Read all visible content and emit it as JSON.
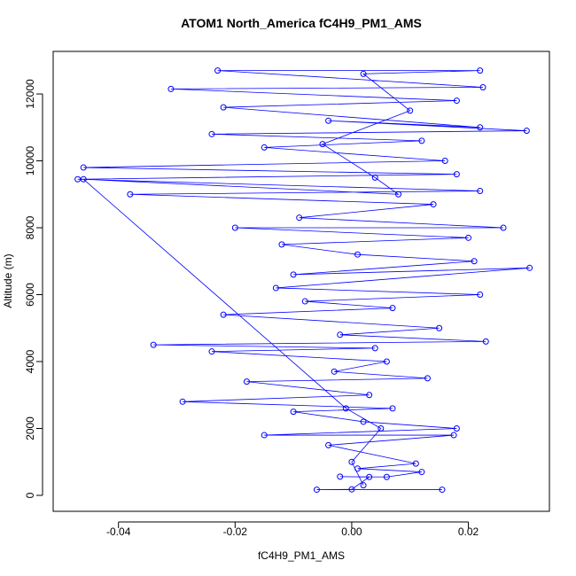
{
  "chart_data": {
    "type": "line",
    "title": "ATOM1 North_America fC4H9_PM1_AMS",
    "x_label": "fC4H9_PM1_AMS",
    "y_label": "Altitude (m)",
    "xlim": [
      -0.0512,
      0.0339
    ],
    "ylim": [
      -477,
      13272
    ],
    "xticks": [
      -0.04,
      -0.02,
      {
        "value": 0,
        "label": "0.00"
      },
      0.02
    ],
    "yticks": [
      0,
      2000,
      4000,
      6000,
      8000,
      10000,
      12000
    ],
    "series": [
      {
        "color": "#0000ff",
        "x": [
          0.0155,
          -0.006,
          0.0,
          0.003,
          -0.002,
          0.006,
          0.012,
          0.001,
          0.011,
          -0.004,
          0.0175,
          -0.015,
          0.018,
          0.002,
          -0.01,
          0.007,
          -0.029,
          0.003,
          -0.018,
          0.013,
          -0.003,
          0.006,
          -0.024,
          0.004,
          -0.034,
          0.023,
          -0.002,
          0.015,
          -0.022,
          0.007,
          -0.008,
          0.022,
          -0.013,
          0.0305,
          -0.01,
          0.021,
          0.001,
          -0.012,
          0.02,
          -0.02,
          0.026,
          -0.009,
          0.014,
          -0.038,
          0.022,
          -0.047,
          0.018,
          -0.046,
          0.016,
          -0.015,
          0.012,
          -0.024,
          0.03,
          -0.004,
          0.022,
          -0.022,
          0.018,
          -0.031,
          0.0225,
          -0.023,
          0.022,
          0.002,
          0.01,
          -0.005,
          0.004,
          0.008,
          -0.046,
          -0.001,
          0.005,
          0.0,
          0.002
        ],
        "values": [
          170,
          170,
          180,
          550,
          560,
          550,
          700,
          800,
          950,
          1500,
          1800,
          1800,
          2000,
          2200,
          2500,
          2600,
          2800,
          3000,
          3400,
          3500,
          3700,
          4000,
          4300,
          4400,
          4500,
          4600,
          4800,
          5000,
          5400,
          5600,
          5800,
          6000,
          6200,
          6800,
          6600,
          7000,
          7200,
          7500,
          7700,
          8000,
          8000,
          8300,
          8700,
          9000,
          9100,
          9450,
          9600,
          9800,
          10000,
          10400,
          10600,
          10800,
          10900,
          11200,
          11000,
          11600,
          11800,
          12150,
          12200,
          12700,
          12700,
          12600,
          11500,
          10500,
          9500,
          9000,
          9450,
          2600,
          2000,
          1000,
          300
        ]
      }
    ]
  }
}
